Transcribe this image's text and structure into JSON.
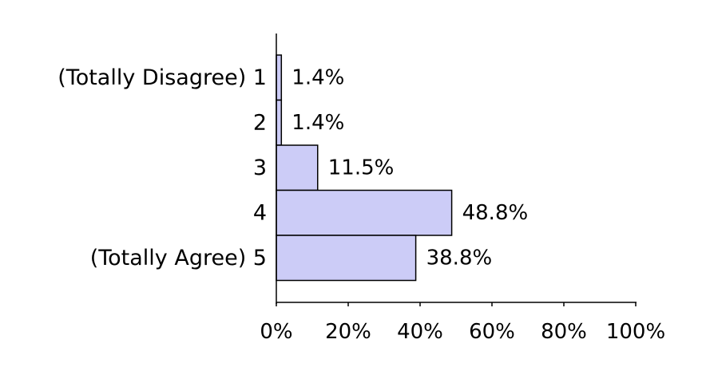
{
  "chart_data": {
    "type": "bar",
    "orientation": "horizontal",
    "categories": [
      "(Totally Disagree) 1",
      "2",
      "3",
      "4",
      "(Totally Agree) 5"
    ],
    "values": [
      1.4,
      1.4,
      11.5,
      48.8,
      38.8
    ],
    "data_labels": [
      "1.4%",
      "1.4%",
      "11.5%",
      "48.8%",
      "38.8%"
    ],
    "xlim": [
      0,
      100
    ],
    "x_ticks": [
      0,
      20,
      40,
      60,
      80,
      100
    ],
    "x_tick_labels": [
      "0%",
      "20%",
      "40%",
      "60%",
      "80%",
      "100%"
    ],
    "title": "",
    "xlabel": "",
    "ylabel": "",
    "grid": false,
    "colors": {
      "bar_fill": "#ccccf7",
      "bar_stroke": "#000000"
    }
  }
}
